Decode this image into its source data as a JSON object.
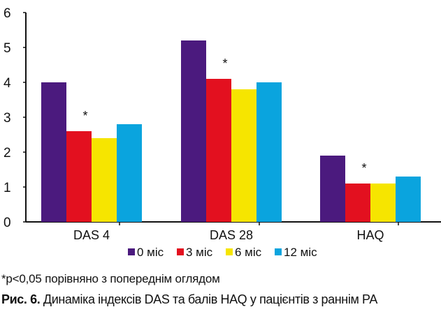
{
  "chart_data": {
    "type": "bar",
    "title": "",
    "xlabel": "",
    "ylabel": "",
    "ylim": [
      0,
      6
    ],
    "yticks": [
      "0",
      "1",
      "2",
      "3",
      "4",
      "5",
      "6"
    ],
    "categories": [
      "DAS 4",
      "DAS 28",
      "HAQ"
    ],
    "series": [
      {
        "name": "0 міс",
        "color": "#4b1a7e",
        "values": [
          4.0,
          5.2,
          1.9
        ]
      },
      {
        "name": "3 міс",
        "color": "#e3101f",
        "values": [
          2.6,
          4.1,
          1.1
        ]
      },
      {
        "name": "6 міс",
        "color": "#f6e500",
        "values": [
          2.4,
          3.8,
          1.1
        ]
      },
      {
        "name": "12 міс",
        "color": "#0aa4de",
        "values": [
          2.8,
          4.0,
          1.3
        ]
      }
    ],
    "annotations": [
      {
        "text": "*",
        "category": 0,
        "series": 1
      },
      {
        "text": "*",
        "category": 1,
        "series": 1
      },
      {
        "text": "*",
        "category": 2,
        "series": 1
      }
    ],
    "legend_position": "bottom",
    "grid": false
  },
  "footnote": "*p<0,05 порівняно з попереднім оглядом",
  "caption": {
    "label": "Рис. 6.",
    "text": " Динаміка індексів DAS та балів HAQ у пацієнтів з раннім РА"
  }
}
